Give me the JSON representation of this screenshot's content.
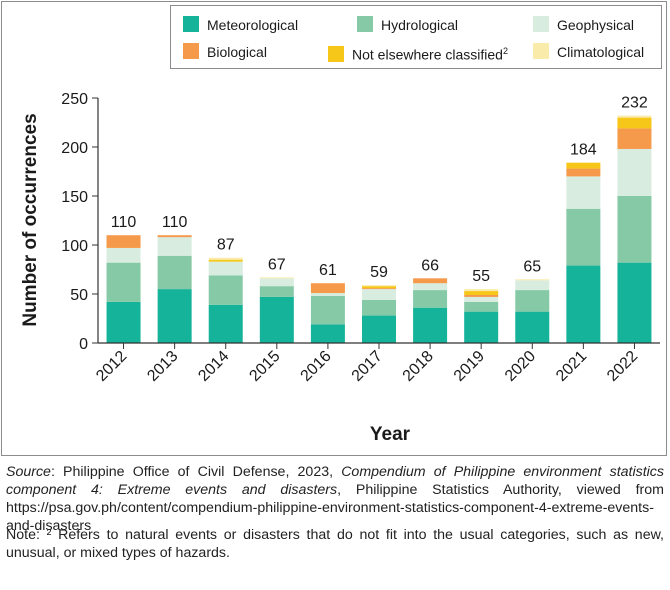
{
  "chart_data": {
    "type": "bar",
    "stacked": true,
    "xlabel": "Year",
    "ylabel": "Number of occurrences",
    "ylim": [
      0,
      250
    ],
    "yticks": [
      0,
      50,
      100,
      150,
      200,
      250
    ],
    "categories": [
      "2012",
      "2013",
      "2014",
      "2015",
      "2016",
      "2017",
      "2018",
      "2019",
      "2020",
      "2021",
      "2022"
    ],
    "totals": [
      110,
      110,
      87,
      67,
      61,
      59,
      66,
      55,
      65,
      184,
      232
    ],
    "series": [
      {
        "name": "Meteorological",
        "color": "#14b39a",
        "values": [
          42,
          55,
          39,
          47,
          19,
          28,
          36,
          32,
          32,
          79,
          82
        ]
      },
      {
        "name": "Hydrological",
        "color": "#86c9a6",
        "values": [
          40,
          34,
          30,
          11,
          29,
          16,
          18,
          10,
          22,
          58,
          68
        ]
      },
      {
        "name": "Geophysical",
        "color": "#d8ecdf",
        "values": [
          15,
          19,
          14,
          8,
          3,
          11,
          7,
          5,
          10,
          33,
          48
        ]
      },
      {
        "name": "Biological",
        "color": "#f59a4a",
        "values": [
          13,
          2,
          0,
          0,
          10,
          1,
          5,
          2,
          0,
          8,
          21
        ]
      },
      {
        "name": "Not elsewhere classified",
        "superscript": "2",
        "color": "#f6c718",
        "values": [
          0,
          0,
          2,
          0,
          0,
          2,
          0,
          4,
          0,
          6,
          11
        ]
      },
      {
        "name": "Climatological",
        "color": "#f9ebaa",
        "values": [
          0,
          0,
          2,
          1,
          0,
          1,
          0,
          2,
          1,
          0,
          2
        ]
      }
    ]
  },
  "caption": {
    "source_label": "Source",
    "source_pre": ": Philippine Office of Civil Defense, 2023, ",
    "source_title": "Compendium of Philippine environment statistics component 4: Extreme events and disasters",
    "source_post": ", Philippine Statistics Authority, viewed from https://psa.gov.ph/content/compendium-philippine-environment-statistics-component-4-extreme-events-and-disasters",
    "note": "Note: ² Refers to natural events or disasters that do not fit into the usual categories, such as new, unusual, or mixed types of hazards."
  }
}
